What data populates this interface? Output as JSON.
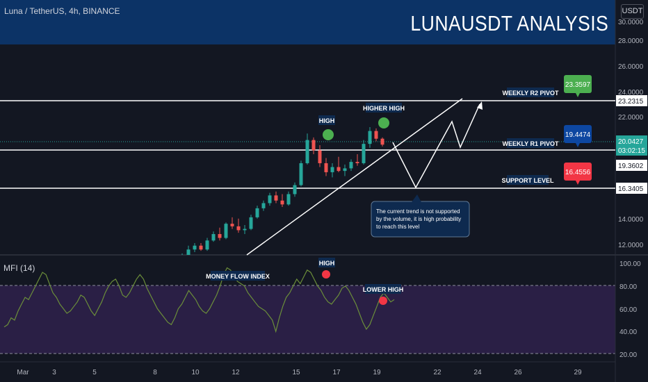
{
  "header": {
    "symbol": "Luna / TetherUS, 4h, BINANCE",
    "title": "LUNAUSDT ANALYSIS",
    "currency_button": "USDT"
  },
  "colors": {
    "background": "#131722",
    "header_band": "#0c3366",
    "bull": "#26a69a",
    "bear": "#ef5350",
    "pivot_green": "#4caf50",
    "pivot_blue": "#0d47a1",
    "pivot_red": "#f23645",
    "mfi_line": "#6b8e3a",
    "mfi_zone": "#2a1f45",
    "tag_bg": "#0e2a4f"
  },
  "price_axis": {
    "labels": [
      "30.0000",
      "28.0000",
      "26.0000",
      "24.0000",
      "22.0000",
      "14.0000",
      "12.0000"
    ],
    "level_labels": [
      {
        "text": "23.2315",
        "kind": "white",
        "value": 23.2315
      },
      {
        "text": "20.0427",
        "sub": "03:02:15",
        "kind": "green",
        "value": 20.0427
      },
      {
        "text": "19.3602",
        "kind": "white",
        "value": 19.3602
      },
      {
        "text": "16.3405",
        "kind": "white",
        "value": 16.3405
      }
    ]
  },
  "mfi_axis": {
    "labels": [
      "100.00",
      "80.00",
      "60.00",
      "40.00",
      "20.00"
    ]
  },
  "time_axis": {
    "labels": [
      "Mar",
      "3",
      "5",
      "8",
      "10",
      "12",
      "15",
      "17",
      "19",
      "22",
      "24",
      "26",
      "29"
    ]
  },
  "mfi_title": "MFI (14)",
  "pivots": [
    {
      "tag": "WEEKLY R2 PIVOT",
      "price": 23.2315,
      "badge": "23.3597",
      "badge_color": "green"
    },
    {
      "tag": "WEEKLY R1 PIVOT",
      "price": 19.3602,
      "badge": "19.4474",
      "badge_color": "blue"
    },
    {
      "tag": "SUPPORT LEVEL",
      "price": 16.3405,
      "badge": "16.4556",
      "badge_color": "red"
    }
  ],
  "annotations": {
    "high": "HIGH",
    "higher_high": "HIGHER HIGH",
    "mfi_label": "MONEY FLOW INDEX",
    "mfi_high": "HIGH",
    "lower_high": "LOWER HIGH",
    "note_lines": [
      "The current trend is not supported",
      "by the volume, it is high probability",
      "to reach this level"
    ]
  },
  "chart_data": {
    "type": "candlestick",
    "symbol": "Luna / TetherUS",
    "timeframe": "4h",
    "exchange": "BINANCE",
    "ylim": [
      11.0,
      30.0
    ],
    "horizontal_levels": [
      23.2315,
      19.3602,
      16.3405
    ],
    "last_price": 20.0427,
    "candles_approx": [
      {
        "o": 11.0,
        "h": 11.6,
        "l": 10.9,
        "c": 11.4
      },
      {
        "o": 11.4,
        "h": 12.2,
        "l": 11.3,
        "c": 11.9
      },
      {
        "o": 11.9,
        "h": 12.4,
        "l": 11.7,
        "c": 12.2
      },
      {
        "o": 12.2,
        "h": 12.4,
        "l": 11.8,
        "c": 11.9
      },
      {
        "o": 11.9,
        "h": 12.8,
        "l": 11.8,
        "c": 12.6
      },
      {
        "o": 12.6,
        "h": 13.3,
        "l": 12.5,
        "c": 13.1
      },
      {
        "o": 13.1,
        "h": 13.6,
        "l": 12.6,
        "c": 12.8
      },
      {
        "o": 12.8,
        "h": 14.0,
        "l": 12.7,
        "c": 13.9
      },
      {
        "o": 13.9,
        "h": 14.4,
        "l": 13.5,
        "c": 13.7
      },
      {
        "o": 13.7,
        "h": 14.3,
        "l": 13.2,
        "c": 13.4
      },
      {
        "o": 13.4,
        "h": 13.8,
        "l": 13.1,
        "c": 13.5
      },
      {
        "o": 13.5,
        "h": 14.6,
        "l": 13.4,
        "c": 14.4
      },
      {
        "o": 14.4,
        "h": 15.3,
        "l": 14.3,
        "c": 15.1
      },
      {
        "o": 15.1,
        "h": 15.7,
        "l": 14.9,
        "c": 15.5
      },
      {
        "o": 15.5,
        "h": 16.3,
        "l": 15.3,
        "c": 16.1
      },
      {
        "o": 16.1,
        "h": 16.4,
        "l": 15.5,
        "c": 15.7
      },
      {
        "o": 15.7,
        "h": 16.2,
        "l": 15.2,
        "c": 15.4
      },
      {
        "o": 15.4,
        "h": 16.4,
        "l": 15.3,
        "c": 16.2
      },
      {
        "o": 16.2,
        "h": 17.1,
        "l": 16.0,
        "c": 16.9
      },
      {
        "o": 16.9,
        "h": 18.8,
        "l": 16.8,
        "c": 18.6
      },
      {
        "o": 18.6,
        "h": 20.9,
        "l": 18.5,
        "c": 20.4
      },
      {
        "o": 20.4,
        "h": 20.6,
        "l": 19.3,
        "c": 19.6
      },
      {
        "o": 19.6,
        "h": 20.0,
        "l": 18.3,
        "c": 18.6
      },
      {
        "o": 18.6,
        "h": 19.0,
        "l": 17.6,
        "c": 17.9
      },
      {
        "o": 17.9,
        "h": 18.6,
        "l": 17.5,
        "c": 18.3
      },
      {
        "o": 18.3,
        "h": 19.1,
        "l": 17.9,
        "c": 18.0
      },
      {
        "o": 18.0,
        "h": 18.5,
        "l": 17.6,
        "c": 18.2
      },
      {
        "o": 18.2,
        "h": 18.9,
        "l": 18.0,
        "c": 18.7
      },
      {
        "o": 18.7,
        "h": 19.3,
        "l": 18.4,
        "c": 18.6
      },
      {
        "o": 18.6,
        "h": 20.4,
        "l": 18.5,
        "c": 20.1
      },
      {
        "o": 20.1,
        "h": 21.4,
        "l": 19.8,
        "c": 21.1
      },
      {
        "o": 21.1,
        "h": 21.3,
        "l": 20.3,
        "c": 20.5
      },
      {
        "o": 20.5,
        "h": 20.6,
        "l": 19.9,
        "c": 20.04
      }
    ],
    "mfi": {
      "name": "MFI (14)",
      "ylim": [
        15,
        105
      ],
      "bands": [
        80,
        20
      ],
      "values": [
        44,
        46,
        52,
        50,
        58,
        64,
        70,
        68,
        74,
        80,
        86,
        92,
        90,
        82,
        74,
        70,
        64,
        60,
        56,
        58,
        62,
        66,
        72,
        70,
        64,
        58,
        54,
        60,
        66,
        74,
        80,
        84,
        86,
        80,
        72,
        70,
        74,
        80,
        86,
        90,
        86,
        78,
        72,
        66,
        60,
        56,
        52,
        48,
        46,
        52,
        60,
        64,
        70,
        76,
        72,
        68,
        62,
        58,
        56,
        60,
        66,
        72,
        80,
        90,
        96,
        94,
        88,
        84,
        82,
        80,
        74,
        70,
        66,
        62,
        60,
        58,
        54,
        50,
        40,
        52,
        62,
        70,
        74,
        80,
        86,
        82,
        88,
        94,
        92,
        86,
        80,
        76,
        70,
        66,
        64,
        68,
        72,
        78,
        80,
        76,
        70,
        64,
        56,
        48,
        42,
        46,
        54,
        62,
        70,
        74,
        70,
        66,
        68
      ]
    }
  }
}
